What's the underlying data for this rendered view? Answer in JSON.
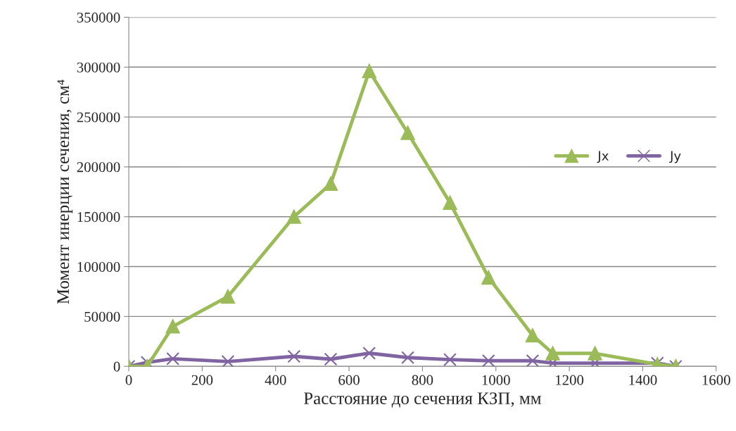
{
  "chart_data": {
    "type": "line",
    "xlabel": "Расстояние до сечения КЗП, мм",
    "ylabel": "Момент инерции сечения, см⁴",
    "x": [
      0,
      50,
      120,
      270,
      450,
      550,
      655,
      760,
      875,
      980,
      1100,
      1155,
      1270,
      1440,
      1490
    ],
    "series": [
      {
        "name": "Jx",
        "color": "#9bbb59",
        "marker": "triangle",
        "values": [
          0,
          0,
          40000,
          70000,
          150000,
          183000,
          296000,
          234000,
          164000,
          89000,
          31000,
          13000,
          13000,
          2000,
          0
        ]
      },
      {
        "name": "Jy",
        "color": "#8064a2",
        "marker": "cross",
        "values": [
          0,
          4000,
          7600,
          4800,
          10000,
          7200,
          13200,
          8800,
          6800,
          5600,
          5600,
          3200,
          3200,
          3200,
          0
        ]
      }
    ],
    "xlim": [
      0,
      1600
    ],
    "xticks": [
      0,
      200,
      400,
      600,
      800,
      1000,
      1200,
      1400,
      1600
    ],
    "ylim": [
      0,
      350000
    ],
    "yticks": [
      0,
      50000,
      100000,
      150000,
      200000,
      250000,
      300000,
      350000
    ],
    "grid": "y",
    "legend": "right",
    "line_style": "solid"
  }
}
